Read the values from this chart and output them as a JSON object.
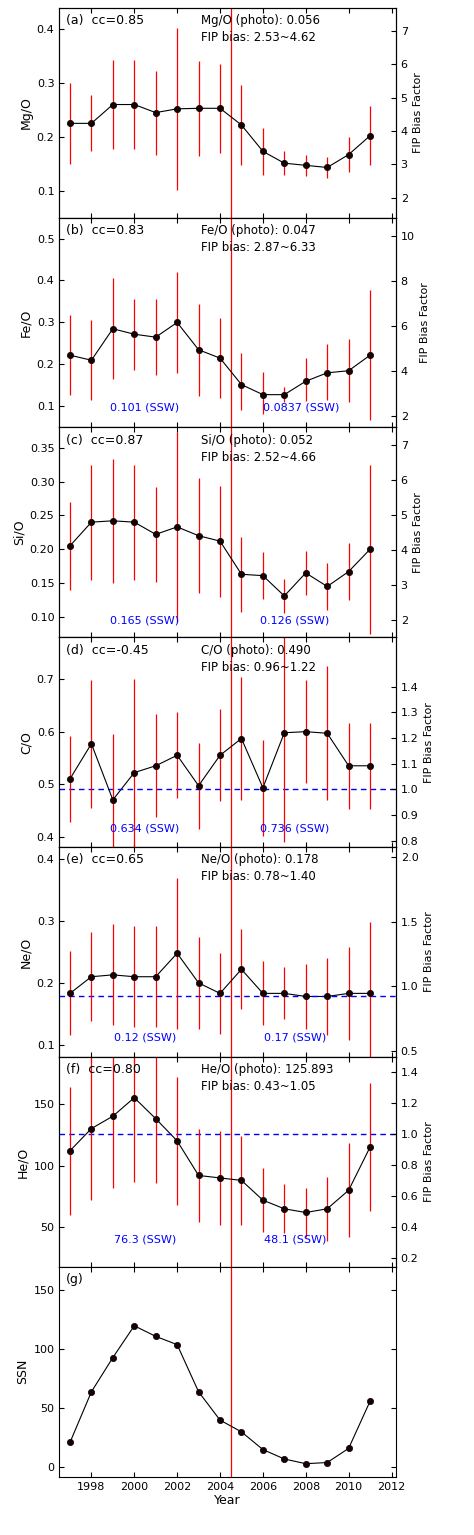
{
  "years": [
    1997,
    1998,
    1999,
    2000,
    2001,
    2002,
    2003,
    2004,
    2005,
    2006,
    2007,
    2008,
    2009,
    2010,
    2011
  ],
  "panels": [
    {
      "label": "(a)",
      "cc": "cc=0.85",
      "ylabel": "Mg/O",
      "ylabel2": "FIP Bias Factor",
      "photo_text": "Mg/O (photo): 0.056",
      "fip_text": "FIP bias: 2.53~4.62",
      "show_ssw": false,
      "ssw_label1": "",
      "ssw_label2": "",
      "ssw_x1": 2000.5,
      "ssw_x2": 2007.5,
      "ssw_y1": 0.08,
      "ssw_y2": 0.08,
      "dashed_line": null,
      "ylim": [
        0.05,
        0.44
      ],
      "ylim2": [
        1.4,
        7.7
      ],
      "yticks": [
        0.1,
        0.2,
        0.3,
        0.4
      ],
      "yticks2": [
        2,
        3,
        4,
        5,
        6,
        7
      ],
      "values": [
        0.225,
        0.225,
        0.26,
        0.26,
        0.245,
        0.252,
        0.253,
        0.253,
        0.222,
        0.173,
        0.151,
        0.147,
        0.143,
        0.167,
        0.202
      ],
      "err_low": [
        0.075,
        0.052,
        0.082,
        0.082,
        0.078,
        0.15,
        0.088,
        0.083,
        0.075,
        0.044,
        0.022,
        0.02,
        0.02,
        0.032,
        0.055
      ],
      "err_high": [
        0.075,
        0.052,
        0.082,
        0.082,
        0.078,
        0.15,
        0.088,
        0.083,
        0.075,
        0.044,
        0.022,
        0.02,
        0.02,
        0.032,
        0.055
      ]
    },
    {
      "label": "(b)",
      "cc": "cc=0.83",
      "ylabel": "Fe/O",
      "ylabel2": "FIP Bias Factor",
      "photo_text": "Fe/O (photo): 0.047",
      "fip_text": "FIP bias: 2.87~6.33",
      "show_ssw": true,
      "ssw_label1": "0.101 (SSW)",
      "ssw_label2": "0.0837 (SSW)",
      "ssw_x1": 2000.5,
      "ssw_x2": 2007.8,
      "ssw_y1": 0.098,
      "ssw_y2": 0.098,
      "dashed_line": null,
      "ylim": [
        0.05,
        0.55
      ],
      "ylim2": [
        1.5,
        10.8
      ],
      "yticks": [
        0.1,
        0.2,
        0.3,
        0.4,
        0.5
      ],
      "yticks2": [
        2,
        4,
        6,
        8,
        10
      ],
      "values": [
        0.222,
        0.21,
        0.285,
        0.272,
        0.265,
        0.3,
        0.235,
        0.215,
        0.152,
        0.128,
        0.128,
        0.16,
        0.18,
        0.185,
        0.222
      ],
      "err_low": [
        0.095,
        0.095,
        0.12,
        0.085,
        0.09,
        0.12,
        0.11,
        0.095,
        0.06,
        0.045,
        0.018,
        0.048,
        0.065,
        0.075,
        0.155
      ],
      "err_high": [
        0.095,
        0.095,
        0.12,
        0.085,
        0.09,
        0.12,
        0.11,
        0.095,
        0.075,
        0.055,
        0.018,
        0.055,
        0.068,
        0.075,
        0.155
      ]
    },
    {
      "label": "(c)",
      "cc": "cc=0.87",
      "ylabel": "Si/O",
      "ylabel2": "FIP Bias Factor",
      "photo_text": "Si/O (photo): 0.052",
      "fip_text": "FIP bias: 2.52~4.66",
      "show_ssw": true,
      "ssw_label1": "0.165 (SSW)",
      "ssw_label2": "0.126 (SSW)",
      "ssw_x1": 2000.5,
      "ssw_x2": 2007.5,
      "ssw_y1": 0.095,
      "ssw_y2": 0.095,
      "dashed_line": null,
      "ylim": [
        0.07,
        0.38
      ],
      "ylim2": [
        1.5,
        7.5
      ],
      "yticks": [
        0.1,
        0.15,
        0.2,
        0.25,
        0.3,
        0.35
      ],
      "yticks2": [
        2,
        3,
        4,
        5,
        6,
        7
      ],
      "values": [
        0.205,
        0.24,
        0.242,
        0.24,
        0.222,
        0.233,
        0.22,
        0.212,
        0.163,
        0.161,
        0.131,
        0.165,
        0.145,
        0.167,
        0.2
      ],
      "err_low": [
        0.065,
        0.085,
        0.092,
        0.085,
        0.07,
        0.14,
        0.085,
        0.082,
        0.055,
        0.035,
        0.025,
        0.032,
        0.035,
        0.042,
        0.125
      ],
      "err_high": [
        0.065,
        0.085,
        0.092,
        0.085,
        0.07,
        0.14,
        0.085,
        0.082,
        0.055,
        0.035,
        0.025,
        0.032,
        0.035,
        0.042,
        0.125
      ]
    },
    {
      "label": "(d)",
      "cc": "cc=-0.45",
      "ylabel": "C/O",
      "ylabel2": "FIP Bias Factor",
      "photo_text": "C/O (photo): 0.490",
      "fip_text": "FIP bias: 0.96~1.22",
      "show_ssw": true,
      "ssw_label1": "0.634 (SSW)",
      "ssw_label2": "0.736 (SSW)",
      "ssw_x1": 2000.5,
      "ssw_x2": 2007.5,
      "ssw_y1": 0.415,
      "ssw_y2": 0.415,
      "dashed_line": 0.49,
      "ylim": [
        0.38,
        0.78
      ],
      "ylim2": [
        0.776,
        1.592
      ],
      "yticks": [
        0.4,
        0.5,
        0.6,
        0.7
      ],
      "yticks2": [
        0.8,
        0.9,
        1.0,
        1.1,
        1.2,
        1.3,
        1.4
      ],
      "values": [
        0.51,
        0.577,
        0.47,
        0.522,
        0.535,
        0.555,
        0.497,
        0.555,
        0.587,
        0.493,
        0.598,
        0.6,
        0.597,
        0.535,
        0.535
      ],
      "err_low": [
        0.082,
        0.122,
        0.125,
        0.178,
        0.098,
        0.082,
        0.082,
        0.088,
        0.118,
        0.092,
        0.208,
        0.098,
        0.128,
        0.082,
        0.082
      ],
      "err_high": [
        0.082,
        0.122,
        0.125,
        0.178,
        0.098,
        0.082,
        0.082,
        0.088,
        0.118,
        0.092,
        0.208,
        0.098,
        0.128,
        0.082,
        0.082
      ]
    },
    {
      "label": "(e)",
      "cc": "cc=0.65",
      "ylabel": "Ne/O",
      "ylabel2": "FIP Bias Factor",
      "photo_text": "Ne/O (photo): 0.178",
      "fip_text": "FIP bias: 0.78~1.40",
      "show_ssw": true,
      "ssw_label1": "0.12 (SSW)",
      "ssw_label2": "0.17 (SSW)",
      "ssw_x1": 2000.5,
      "ssw_x2": 2007.5,
      "ssw_y1": 0.112,
      "ssw_y2": 0.112,
      "dashed_line": 0.178,
      "ylim": [
        0.08,
        0.42
      ],
      "ylim2": [
        0.45,
        2.08
      ],
      "yticks": [
        0.1,
        0.2,
        0.3,
        0.4
      ],
      "yticks2": [
        0.5,
        1.0,
        1.5,
        2.0
      ],
      "values": [
        0.183,
        0.21,
        0.213,
        0.21,
        0.21,
        0.248,
        0.2,
        0.183,
        0.222,
        0.183,
        0.183,
        0.178,
        0.178,
        0.183,
        0.183
      ],
      "err_low": [
        0.068,
        0.072,
        0.082,
        0.082,
        0.082,
        0.122,
        0.075,
        0.065,
        0.065,
        0.052,
        0.042,
        0.052,
        0.062,
        0.075,
        0.115
      ],
      "err_high": [
        0.068,
        0.072,
        0.082,
        0.082,
        0.082,
        0.122,
        0.075,
        0.065,
        0.065,
        0.052,
        0.042,
        0.052,
        0.062,
        0.075,
        0.115
      ]
    },
    {
      "label": "(f)",
      "cc": "cc=0.80",
      "ylabel": "He/O",
      "ylabel2": "FIP Bias Factor",
      "photo_text": "He/O (photo): 125.893",
      "fip_text": "FIP bias: 0.43~1.05",
      "show_ssw": true,
      "ssw_label1": "76.3 (SSW)",
      "ssw_label2": "48.1 (SSW)",
      "ssw_x1": 2000.5,
      "ssw_x2": 2007.5,
      "ssw_y1": 40,
      "ssw_y2": 40,
      "dashed_line": 125.893,
      "ylim": [
        18,
        188
      ],
      "ylim2": [
        0.143,
        1.497
      ],
      "yticks": [
        50,
        100,
        150
      ],
      "yticks2": [
        0.2,
        0.4,
        0.6,
        0.8,
        1.0,
        1.2,
        1.4
      ],
      "values": [
        112,
        130,
        140,
        155,
        138,
        120,
        92,
        90,
        88,
        72,
        65,
        62,
        65,
        80,
        115
      ],
      "err_low": [
        52,
        58,
        58,
        68,
        52,
        52,
        38,
        38,
        36,
        26,
        20,
        20,
        26,
        38,
        52
      ],
      "err_high": [
        52,
        58,
        58,
        68,
        52,
        52,
        38,
        38,
        36,
        26,
        20,
        20,
        26,
        38,
        52
      ]
    }
  ],
  "ssn_years": [
    1997,
    1998,
    1999,
    2000,
    2001,
    2002,
    2003,
    2004,
    2005,
    2006,
    2007,
    2008,
    2009,
    2010,
    2011
  ],
  "ssn_values": [
    21,
    64,
    93,
    120,
    111,
    104,
    64,
    40,
    30,
    15,
    7,
    3,
    4,
    16,
    56
  ],
  "vertical_line_x": 2004.5,
  "xlim": [
    1996.5,
    2012.2
  ],
  "xticks": [
    1998,
    2000,
    2002,
    2004,
    2006,
    2008,
    2010,
    2012
  ]
}
